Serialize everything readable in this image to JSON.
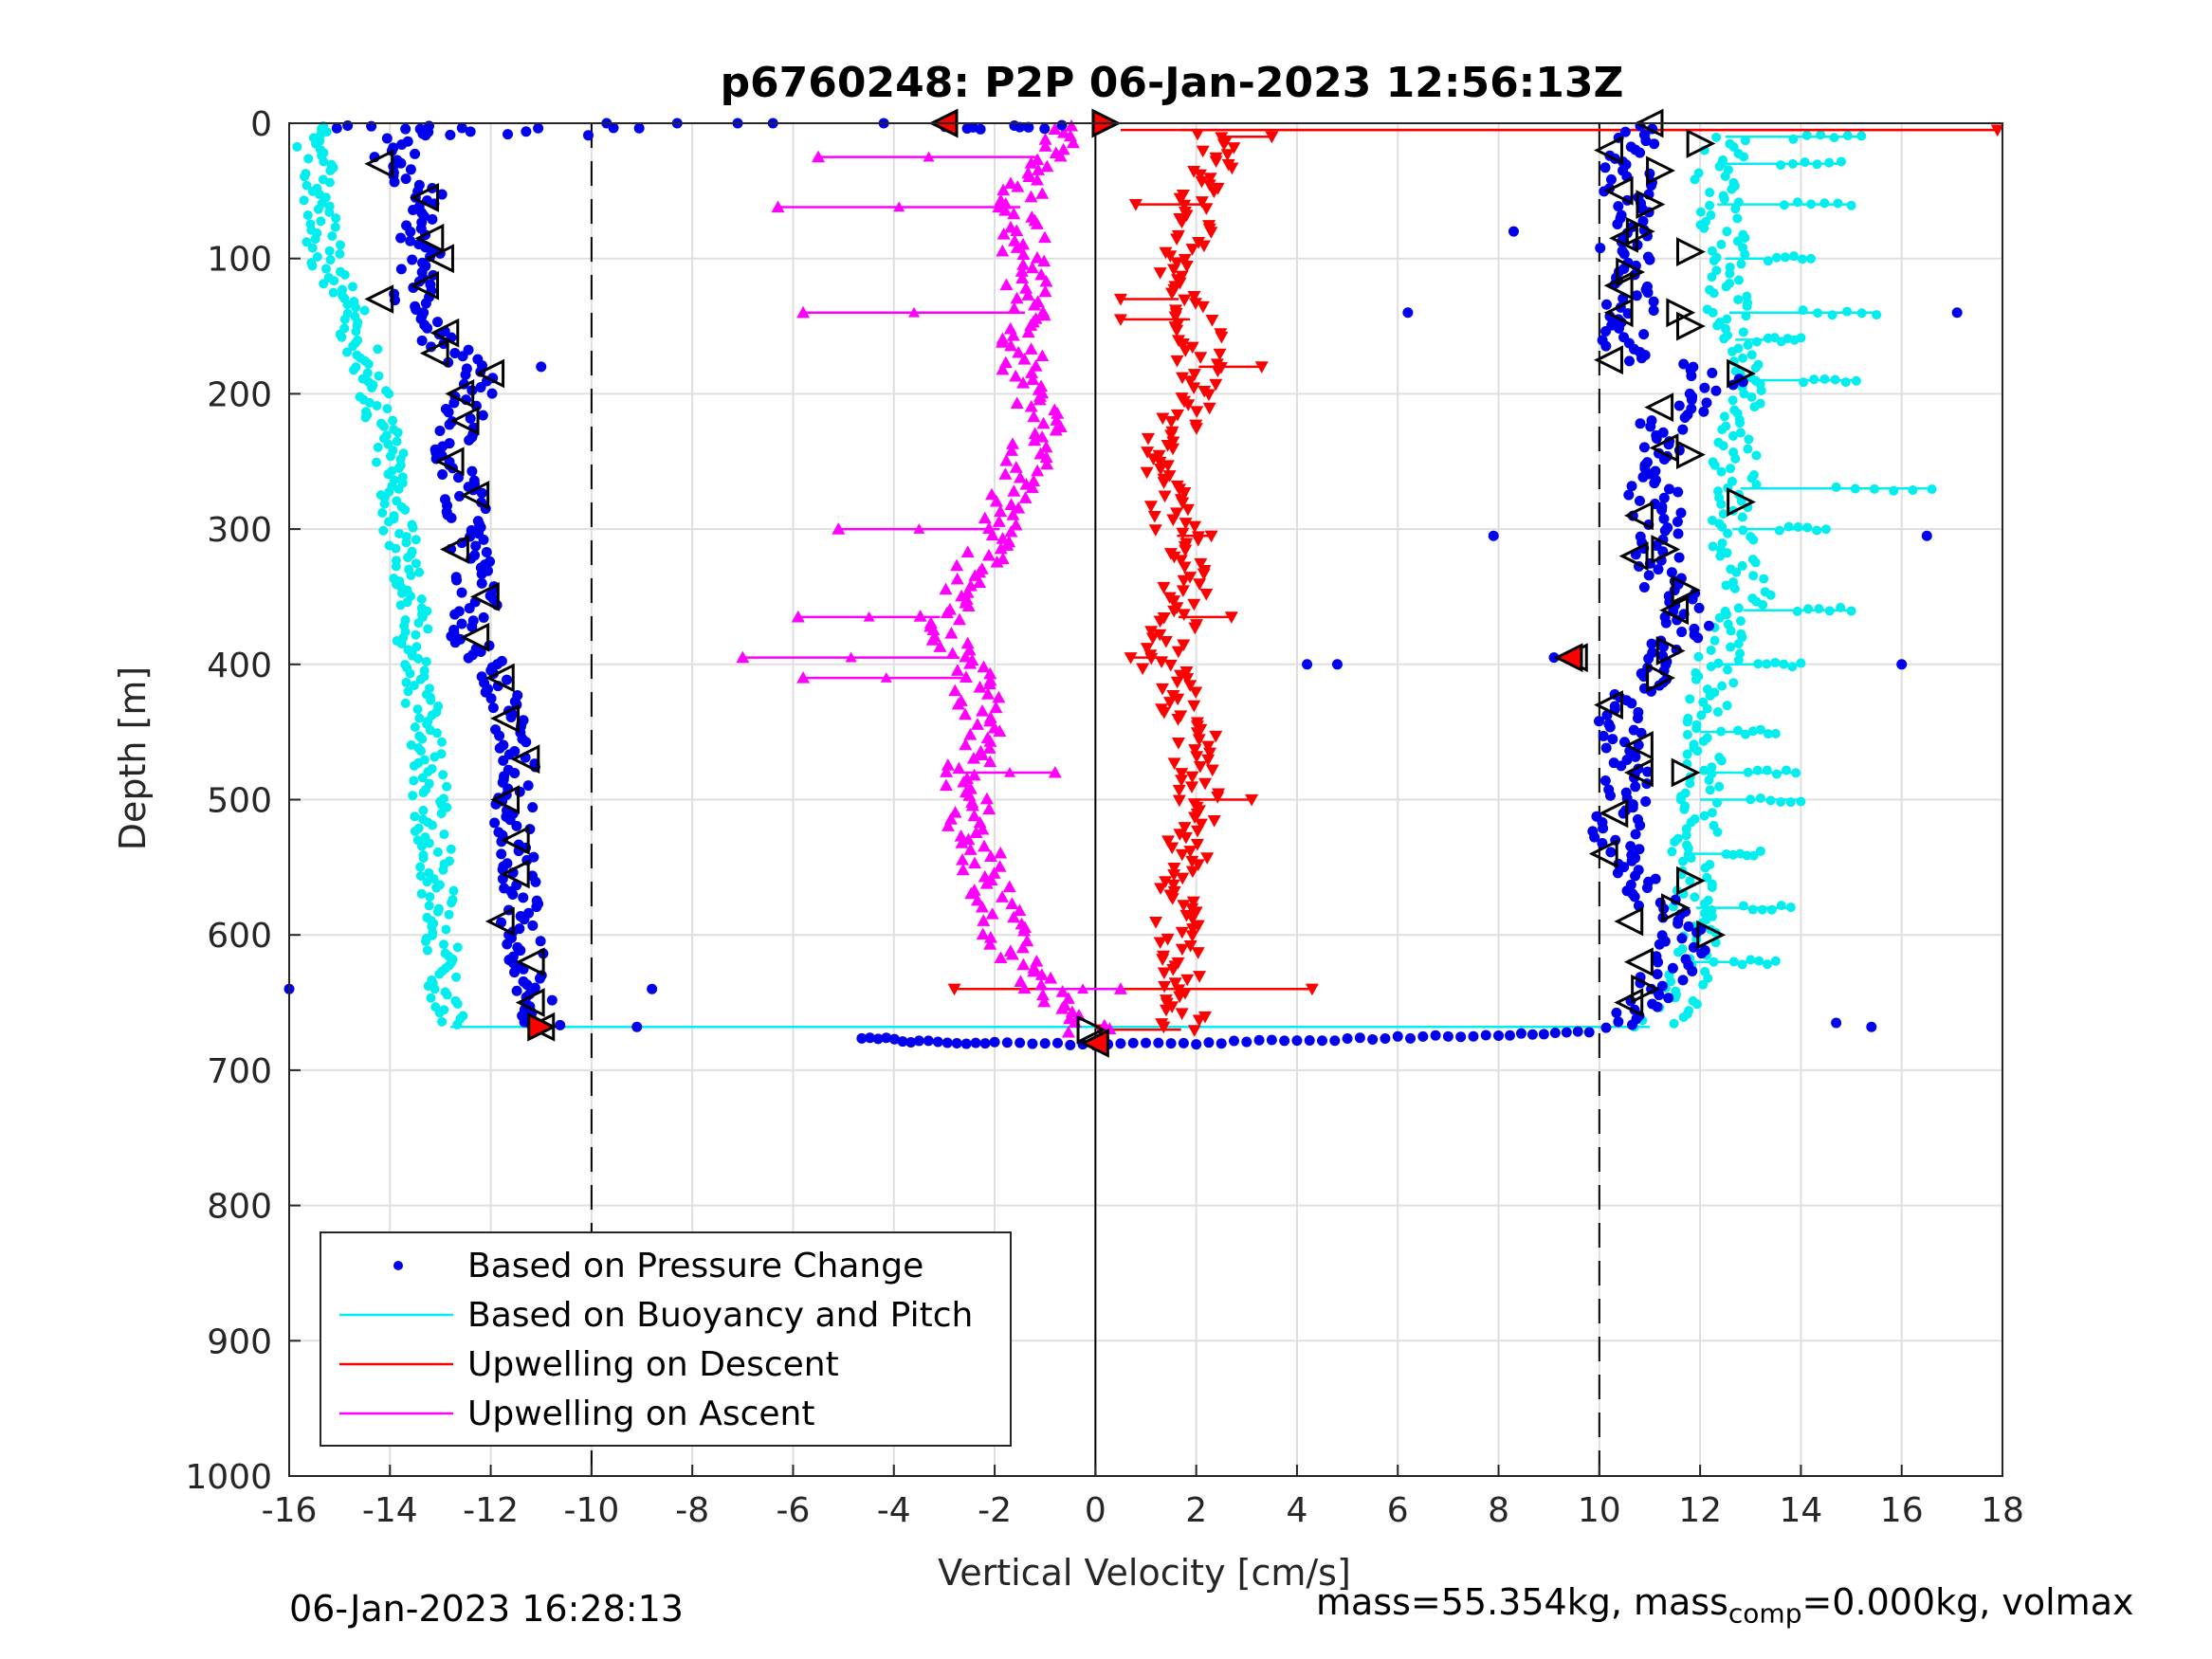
{
  "chart_data": {
    "type": "scatter",
    "title": "p6760248: P2P 06-Jan-2023 12:56:13Z",
    "xlabel": "Vertical Velocity [cm/s]",
    "ylabel": "Depth [m]",
    "xlim": [
      -16,
      18
    ],
    "ylim": [
      0,
      1000
    ],
    "y_reversed": true,
    "grid": true,
    "x_ticks": [
      "-16",
      "-14",
      "-12",
      "-10",
      "-8",
      "-6",
      "-4",
      "-2",
      "0",
      "2",
      "4",
      "6",
      "8",
      "10",
      "12",
      "14",
      "16",
      "18"
    ],
    "y_ticks": [
      "0",
      "100",
      "200",
      "300",
      "400",
      "500",
      "600",
      "700",
      "800",
      "900",
      "1000"
    ],
    "reference_lines": [
      {
        "x": -10,
        "style": "dashed",
        "color": "#000000"
      },
      {
        "x": 10,
        "style": "dashed",
        "color": "#000000"
      },
      {
        "x": 0,
        "style": "solid",
        "color": "#000000"
      }
    ],
    "legend_position": "bottom-left",
    "series": [
      {
        "name": "Based on Pressure Change",
        "color": "#0000ee",
        "marker": "dot",
        "descent_profile": [
          [
            0,
            -13.5
          ],
          [
            30,
            -14.0
          ],
          [
            50,
            -13.3
          ],
          [
            80,
            -13.5
          ],
          [
            100,
            -13.3
          ],
          [
            130,
            -13.6
          ],
          [
            160,
            -13.0
          ],
          [
            190,
            -12.2
          ],
          [
            210,
            -12.5
          ],
          [
            250,
            -12.8
          ],
          [
            280,
            -12.5
          ],
          [
            320,
            -12.4
          ],
          [
            350,
            -12.2
          ],
          [
            380,
            -12.5
          ],
          [
            400,
            -12.0
          ],
          [
            440,
            -11.7
          ],
          [
            480,
            -11.4
          ],
          [
            520,
            -11.6
          ],
          [
            560,
            -11.5
          ],
          [
            600,
            -11.4
          ],
          [
            640,
            -11.2
          ],
          [
            668,
            -11.0
          ]
        ],
        "ascent_profile": [
          [
            0,
            10.6
          ],
          [
            30,
            10.6
          ],
          [
            60,
            10.5
          ],
          [
            90,
            10.5
          ],
          [
            120,
            10.6
          ],
          [
            150,
            10.6
          ],
          [
            170,
            10.4
          ],
          [
            190,
            12.5
          ],
          [
            220,
            11.3
          ],
          [
            260,
            11.0
          ],
          [
            300,
            11.2
          ],
          [
            330,
            11.1
          ],
          [
            370,
            11.8
          ],
          [
            400,
            11.2
          ],
          [
            430,
            10.4
          ],
          [
            460,
            10.5
          ],
          [
            490,
            10.5
          ],
          [
            520,
            10.3
          ],
          [
            550,
            10.4
          ],
          [
            590,
            11.6
          ],
          [
            620,
            11.6
          ],
          [
            650,
            10.8
          ],
          [
            670,
            10.6
          ]
        ],
        "bottom_turn": [
          [
            672,
            9.8
          ],
          [
            674,
            8
          ],
          [
            676,
            6
          ],
          [
            678,
            4
          ],
          [
            680,
            2
          ],
          [
            681,
            0
          ],
          [
            680,
            -2
          ],
          [
            679,
            -3.5
          ],
          [
            675,
            -4.8
          ]
        ],
        "outliers": [
          [
            0,
            -9.7
          ],
          [
            0,
            -8.3
          ],
          [
            0,
            -6.4
          ],
          [
            0,
            -7.1
          ],
          [
            0,
            -4.2
          ],
          [
            80,
            8.3
          ],
          [
            140,
            6.2
          ],
          [
            140,
            17.1
          ],
          [
            180,
            -11.0
          ],
          [
            305,
            7.9
          ],
          [
            305,
            16.5
          ],
          [
            400,
            4.2
          ],
          [
            400,
            4.8
          ],
          [
            395,
            9.1
          ],
          [
            400,
            16.0
          ],
          [
            640,
            -16.0
          ],
          [
            640,
            -8.8
          ],
          [
            668,
            -9.1
          ],
          [
            665,
            14.7
          ],
          [
            668,
            15.4
          ]
        ]
      },
      {
        "name": "Based on Buoyancy and Pitch",
        "color": "#00eeee",
        "marker": "dot-line",
        "descent_profile": [
          [
            0,
            -15.6
          ],
          [
            50,
            -15.4
          ],
          [
            100,
            -15.3
          ],
          [
            150,
            -14.7
          ],
          [
            200,
            -14.3
          ],
          [
            250,
            -14.0
          ],
          [
            300,
            -13.8
          ],
          [
            350,
            -13.6
          ],
          [
            400,
            -13.5
          ],
          [
            450,
            -13.3
          ],
          [
            500,
            -13.2
          ],
          [
            550,
            -13.1
          ],
          [
            600,
            -13.0
          ],
          [
            650,
            -12.9
          ],
          [
            668,
            -12.8
          ]
        ],
        "ascent_profile": [
          [
            10,
            12.5
          ],
          [
            50,
            12.3
          ],
          [
            100,
            12.5
          ],
          [
            150,
            12.6
          ],
          [
            190,
            13.0
          ],
          [
            230,
            12.6
          ],
          [
            270,
            12.8
          ],
          [
            310,
            12.6
          ],
          [
            350,
            13.0
          ],
          [
            400,
            12.3
          ],
          [
            450,
            12.0
          ],
          [
            500,
            12.0
          ],
          [
            550,
            11.8
          ],
          [
            600,
            12.0
          ],
          [
            650,
            11.6
          ],
          [
            668,
            11.0
          ]
        ],
        "spikes": [
          [
            10,
            15.2
          ],
          [
            30,
            14.8
          ],
          [
            60,
            15.0
          ],
          [
            100,
            14.2
          ],
          [
            140,
            15.5
          ],
          [
            160,
            14.0
          ],
          [
            190,
            15.1
          ],
          [
            270,
            16.6
          ],
          [
            300,
            14.5
          ],
          [
            360,
            15.0
          ],
          [
            400,
            14.0
          ],
          [
            450,
            13.5
          ],
          [
            480,
            13.9
          ],
          [
            500,
            14.0
          ],
          [
            540,
            13.2
          ],
          [
            580,
            13.8
          ],
          [
            620,
            13.5
          ]
        ]
      },
      {
        "name": "Upwelling on Descent",
        "color": "#ff0000",
        "marker": "down-triangle",
        "profile": [
          [
            10,
            2.6
          ],
          [
            40,
            2.2
          ],
          [
            80,
            2.0
          ],
          [
            120,
            1.5
          ],
          [
            160,
            2.1
          ],
          [
            200,
            2.0
          ],
          [
            250,
            1.2
          ],
          [
            300,
            1.6
          ],
          [
            350,
            1.8
          ],
          [
            400,
            1.3
          ],
          [
            450,
            2.0
          ],
          [
            500,
            2.0
          ],
          [
            550,
            1.8
          ],
          [
            600,
            1.6
          ],
          [
            650,
            1.8
          ],
          [
            670,
            1.7
          ]
        ],
        "spikes": [
          [
            5,
            17.9
          ],
          [
            10,
            3.5
          ],
          [
            60,
            0.8
          ],
          [
            130,
            0.5
          ],
          [
            145,
            0.5
          ],
          [
            180,
            3.3
          ],
          [
            305,
            2.3
          ],
          [
            365,
            2.7
          ],
          [
            395,
            0.7
          ],
          [
            500,
            3.1
          ],
          [
            640,
            4.3
          ],
          [
            640,
            -2.8
          ],
          [
            670,
            0.1
          ]
        ]
      },
      {
        "name": "Upwelling on Ascent",
        "color": "#ff00ff",
        "marker": "up-triangle",
        "profile": [
          [
            0,
            -0.2
          ],
          [
            30,
            -1.3
          ],
          [
            60,
            -1.5
          ],
          [
            100,
            -1.4
          ],
          [
            140,
            -1.4
          ],
          [
            180,
            -1.5
          ],
          [
            220,
            -1.0
          ],
          [
            260,
            -1.5
          ],
          [
            300,
            -1.9
          ],
          [
            340,
            -2.5
          ],
          [
            370,
            -3.2
          ],
          [
            400,
            -2.6
          ],
          [
            440,
            -2.2
          ],
          [
            480,
            -2.6
          ],
          [
            520,
            -2.5
          ],
          [
            560,
            -2.1
          ],
          [
            600,
            -1.8
          ],
          [
            640,
            -1.0
          ],
          [
            670,
            -0.1
          ]
        ],
        "spikes": [
          [
            25,
            -5.5
          ],
          [
            62,
            -6.3
          ],
          [
            140,
            -5.8
          ],
          [
            300,
            -5.1
          ],
          [
            365,
            -5.9
          ],
          [
            395,
            -7.0
          ],
          [
            410,
            -5.8
          ],
          [
            480,
            -0.8
          ],
          [
            640,
            0.5
          ]
        ]
      }
    ],
    "direction_markers": {
      "left_black": [
        [
          0,
          -3.0
        ],
        [
          30,
          -14.2
        ],
        [
          55,
          -13.3
        ],
        [
          85,
          -13.2
        ],
        [
          100,
          -13.0
        ],
        [
          120,
          -13.3
        ],
        [
          130,
          -14.2
        ],
        [
          155,
          -12.9
        ],
        [
          170,
          -13.1
        ],
        [
          185,
          -12.0
        ],
        [
          200,
          -12.6
        ],
        [
          220,
          -12.5
        ],
        [
          250,
          -12.8
        ],
        [
          275,
          -12.3
        ],
        [
          315,
          -12.7
        ],
        [
          350,
          -12.1
        ],
        [
          380,
          -12.3
        ],
        [
          410,
          -11.8
        ],
        [
          440,
          -11.7
        ],
        [
          470,
          -11.3
        ],
        [
          500,
          -11.7
        ],
        [
          530,
          -11.5
        ],
        [
          555,
          -11.5
        ],
        [
          590,
          -11.8
        ],
        [
          620,
          -11.2
        ],
        [
          650,
          -11.2
        ],
        [
          668,
          -11.0
        ],
        [
          0,
          11.0
        ],
        [
          20,
          10.2
        ],
        [
          50,
          10.4
        ],
        [
          85,
          10.5
        ],
        [
          120,
          10.4
        ],
        [
          140,
          10.4
        ],
        [
          175,
          10.2
        ],
        [
          210,
          11.2
        ],
        [
          240,
          11.3
        ],
        [
          290,
          10.8
        ],
        [
          320,
          10.7
        ],
        [
          360,
          11.5
        ],
        [
          395,
          9.5
        ],
        [
          430,
          10.2
        ],
        [
          460,
          10.8
        ],
        [
          480,
          10.8
        ],
        [
          510,
          10.3
        ],
        [
          540,
          10.1
        ],
        [
          590,
          10.6
        ],
        [
          620,
          10.8
        ],
        [
          650,
          10.6
        ]
      ],
      "right_black": [
        [
          0,
          0.2
        ],
        [
          15,
          12.0
        ],
        [
          35,
          11.2
        ],
        [
          60,
          11.0
        ],
        [
          80,
          10.8
        ],
        [
          95,
          11.8
        ],
        [
          110,
          10.6
        ],
        [
          140,
          11.6
        ],
        [
          150,
          11.8
        ],
        [
          185,
          12.8
        ],
        [
          245,
          11.8
        ],
        [
          280,
          12.8
        ],
        [
          315,
          11.3
        ],
        [
          345,
          11.7
        ],
        [
          390,
          11.4
        ],
        [
          410,
          11.2
        ],
        [
          480,
          11.7
        ],
        [
          560,
          11.8
        ],
        [
          580,
          11.5
        ],
        [
          600,
          12.2
        ],
        [
          640,
          10.9
        ],
        [
          670,
          -0.1
        ]
      ],
      "red_fill": [
        [
          0,
          -3.0
        ],
        [
          0,
          0.2
        ],
        [
          395,
          9.4
        ],
        [
          668,
          -11.0
        ],
        [
          680,
          0.0
        ]
      ]
    }
  },
  "legend": [
    {
      "label": "Based on Pressure Change",
      "color": "#0000ee",
      "kind": "dot"
    },
    {
      "label": "Based on Buoyancy and Pitch",
      "color": "#00eeee",
      "kind": "line"
    },
    {
      "label": "Upwelling on Descent",
      "color": "#ff0000",
      "kind": "line"
    },
    {
      "label": "Upwelling on Ascent",
      "color": "#ff00ff",
      "kind": "line"
    }
  ],
  "footer": {
    "timestamp": "06-Jan-2023 16:28:13",
    "mass_prefix": "mass=55.354kg, mass",
    "mass_sub": "comp",
    "mass_suffix": "=0.000kg, volmax"
  }
}
